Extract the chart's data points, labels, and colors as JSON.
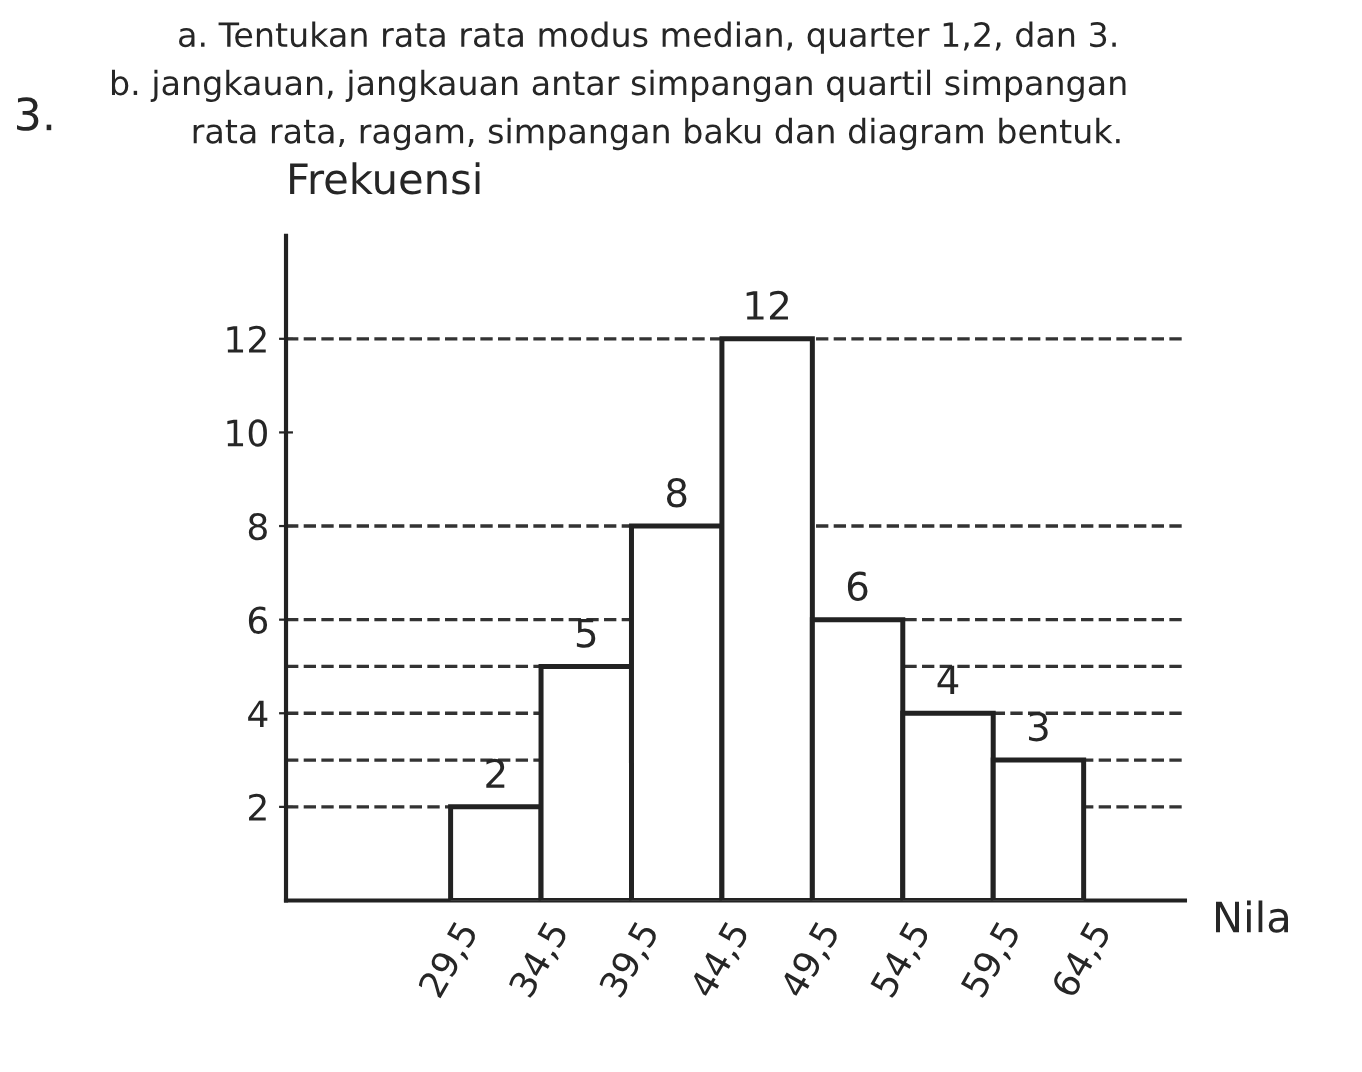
{
  "chart_data": {
    "type": "histogram",
    "annotations": [
      "3.",
      "a. Tentukan rata rata modus median, quarter 1,2, dan 3.",
      "b. jangkauan, jangkauan antar simpangan quartil simpangan",
      "rata rata, ragam, simpangan baku dan diagram bentuk."
    ],
    "xlabel": "Nila",
    "ylabel": "Frekuensi",
    "bins": [
      29.5,
      34.5,
      39.5,
      44.5,
      49.5,
      54.5,
      59.5,
      64.5
    ],
    "values": [
      2,
      5,
      8,
      12,
      6,
      4,
      3
    ],
    "color": "#ffffff",
    "data_labels": true,
    "xlim": [
      20.4,
      70.1
    ],
    "ylim": [
      0,
      14.2
    ],
    "xticks": [
      {
        "value": 29.5,
        "label": "29,5"
      },
      {
        "value": 34.5,
        "label": "34,5"
      },
      {
        "value": 39.5,
        "label": "39,5"
      },
      {
        "value": 44.5,
        "label": "44,5"
      },
      {
        "value": 49.5,
        "label": "49,5"
      },
      {
        "value": 54.5,
        "label": "54,5"
      },
      {
        "value": 59.5,
        "label": "59,5"
      },
      {
        "value": 64.5,
        "label": "64,5"
      }
    ],
    "yticks": [
      2,
      4,
      6,
      8,
      10,
      12
    ],
    "ref_lines": [
      {
        "axis": "y",
        "value": 12,
        "line_style": "dashed",
        "color": "#333333"
      },
      {
        "axis": "y",
        "value": 8,
        "line_style": "dashed",
        "color": "#333333"
      },
      {
        "axis": "y",
        "value": 6,
        "line_style": "dashed",
        "color": "#333333"
      },
      {
        "axis": "y",
        "value": 5,
        "line_style": "dashed",
        "color": "#333333"
      },
      {
        "axis": "y",
        "value": 4,
        "line_style": "dashed",
        "color": "#333333"
      },
      {
        "axis": "y",
        "value": 3,
        "line_style": "dashed",
        "color": "#333333"
      },
      {
        "axis": "y",
        "value": 2,
        "line_style": "dashed",
        "color": "#333333"
      }
    ],
    "grid": false,
    "legend": false
  }
}
